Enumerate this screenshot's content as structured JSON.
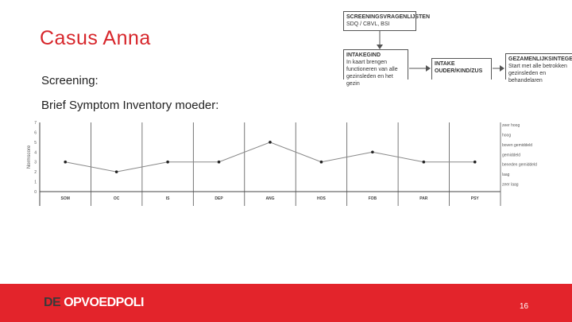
{
  "slide": {
    "title": "Casus Anna",
    "line1": "Screening:",
    "line2": "Brief Symptom Inventory moeder:",
    "logo_part1": "DE",
    "logo_part2": "OPVOEDPOLI",
    "page_number": "16"
  },
  "flow": {
    "box1": {
      "title": "SCREENINGSVRAGENLIJSTEN",
      "line1": "SDQ / CBVL, BSI"
    },
    "box2": {
      "title": "INTAKEGIND",
      "line1": "In kaart brengen",
      "line2": "functioneren van alle",
      "line3": "gezinsleden en het gezin"
    },
    "box3": {
      "title": "INTAKE",
      "line1": "OUDER/KIND/ZUS"
    },
    "box4": {
      "title": "GEZAMENLIJKSINTEGESPREK",
      "line1": "Start met alle betrokken",
      "line2": "gezinsleden en behandelaren"
    }
  },
  "colors": {
    "accent": "#d7262b",
    "footer": "#e3242b"
  },
  "chart_data": {
    "type": "line",
    "title": "",
    "ylabel": "Normscore",
    "xlabel": "",
    "categories": [
      "SOM",
      "OC",
      "IS",
      "DEP",
      "ANG",
      "HOS",
      "FOB",
      "PAR",
      "PSY"
    ],
    "series": [
      {
        "values": [
          3,
          2,
          3,
          3,
          5,
          3,
          4,
          3,
          3
        ]
      }
    ],
    "ylim": [
      0,
      7
    ],
    "yticks": [
      "0",
      "1",
      "2",
      "3",
      "4",
      "5",
      "6",
      "7"
    ],
    "right_labels": [
      "zeer hoog",
      "hoog",
      "boven gemiddeld",
      "gemiddeld",
      "beneden gemiddeld",
      "laag",
      "zeer laag"
    ],
    "grid": "vertical"
  }
}
